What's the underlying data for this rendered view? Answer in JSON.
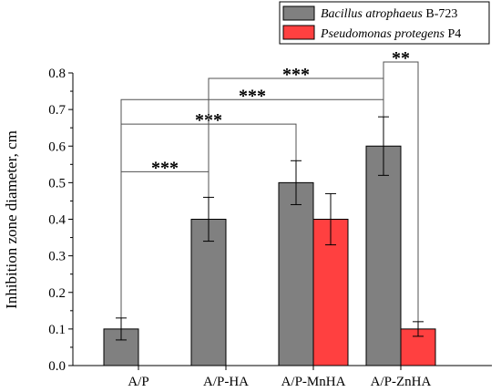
{
  "chart_data": {
    "type": "bar",
    "title": "",
    "xlabel": "",
    "ylabel": "Inhibition zone diameter, cm",
    "ylim": [
      0,
      0.8
    ],
    "yticks": [
      "0.0",
      "0.1",
      "0.2",
      "0.3",
      "0.4",
      "0.5",
      "0.6",
      "0.7",
      "0.8"
    ],
    "categories": [
      "A/P",
      "A/P-HA",
      "A/P-MnHA",
      "A/P-ZnHA"
    ],
    "series": [
      {
        "name_italic": "Bacillus atrophaeus",
        "name_suffix": " B-723",
        "color": "#808080",
        "values": [
          0.1,
          0.4,
          0.5,
          0.6
        ],
        "errors": [
          0.03,
          0.06,
          0.06,
          0.08
        ]
      },
      {
        "name_italic": "Pseudomonas protegens",
        "name_suffix": " P4",
        "color": "#ff4040",
        "values": [
          null,
          null,
          0.4,
          0.1
        ],
        "errors": [
          null,
          null,
          0.07,
          0.02
        ]
      }
    ],
    "legend_position": "top-right",
    "significance": [
      {
        "from": [
          0,
          0
        ],
        "to": [
          1,
          0
        ],
        "label": "***"
      },
      {
        "from": [
          0,
          0
        ],
        "to": [
          2,
          0
        ],
        "label": "***"
      },
      {
        "from": [
          0,
          0
        ],
        "to": [
          3,
          0
        ],
        "label": "***"
      },
      {
        "from": [
          1,
          0
        ],
        "to": [
          3,
          0
        ],
        "label": "***"
      },
      {
        "from": [
          3,
          0
        ],
        "to": [
          3,
          1
        ],
        "label": "**"
      }
    ]
  }
}
